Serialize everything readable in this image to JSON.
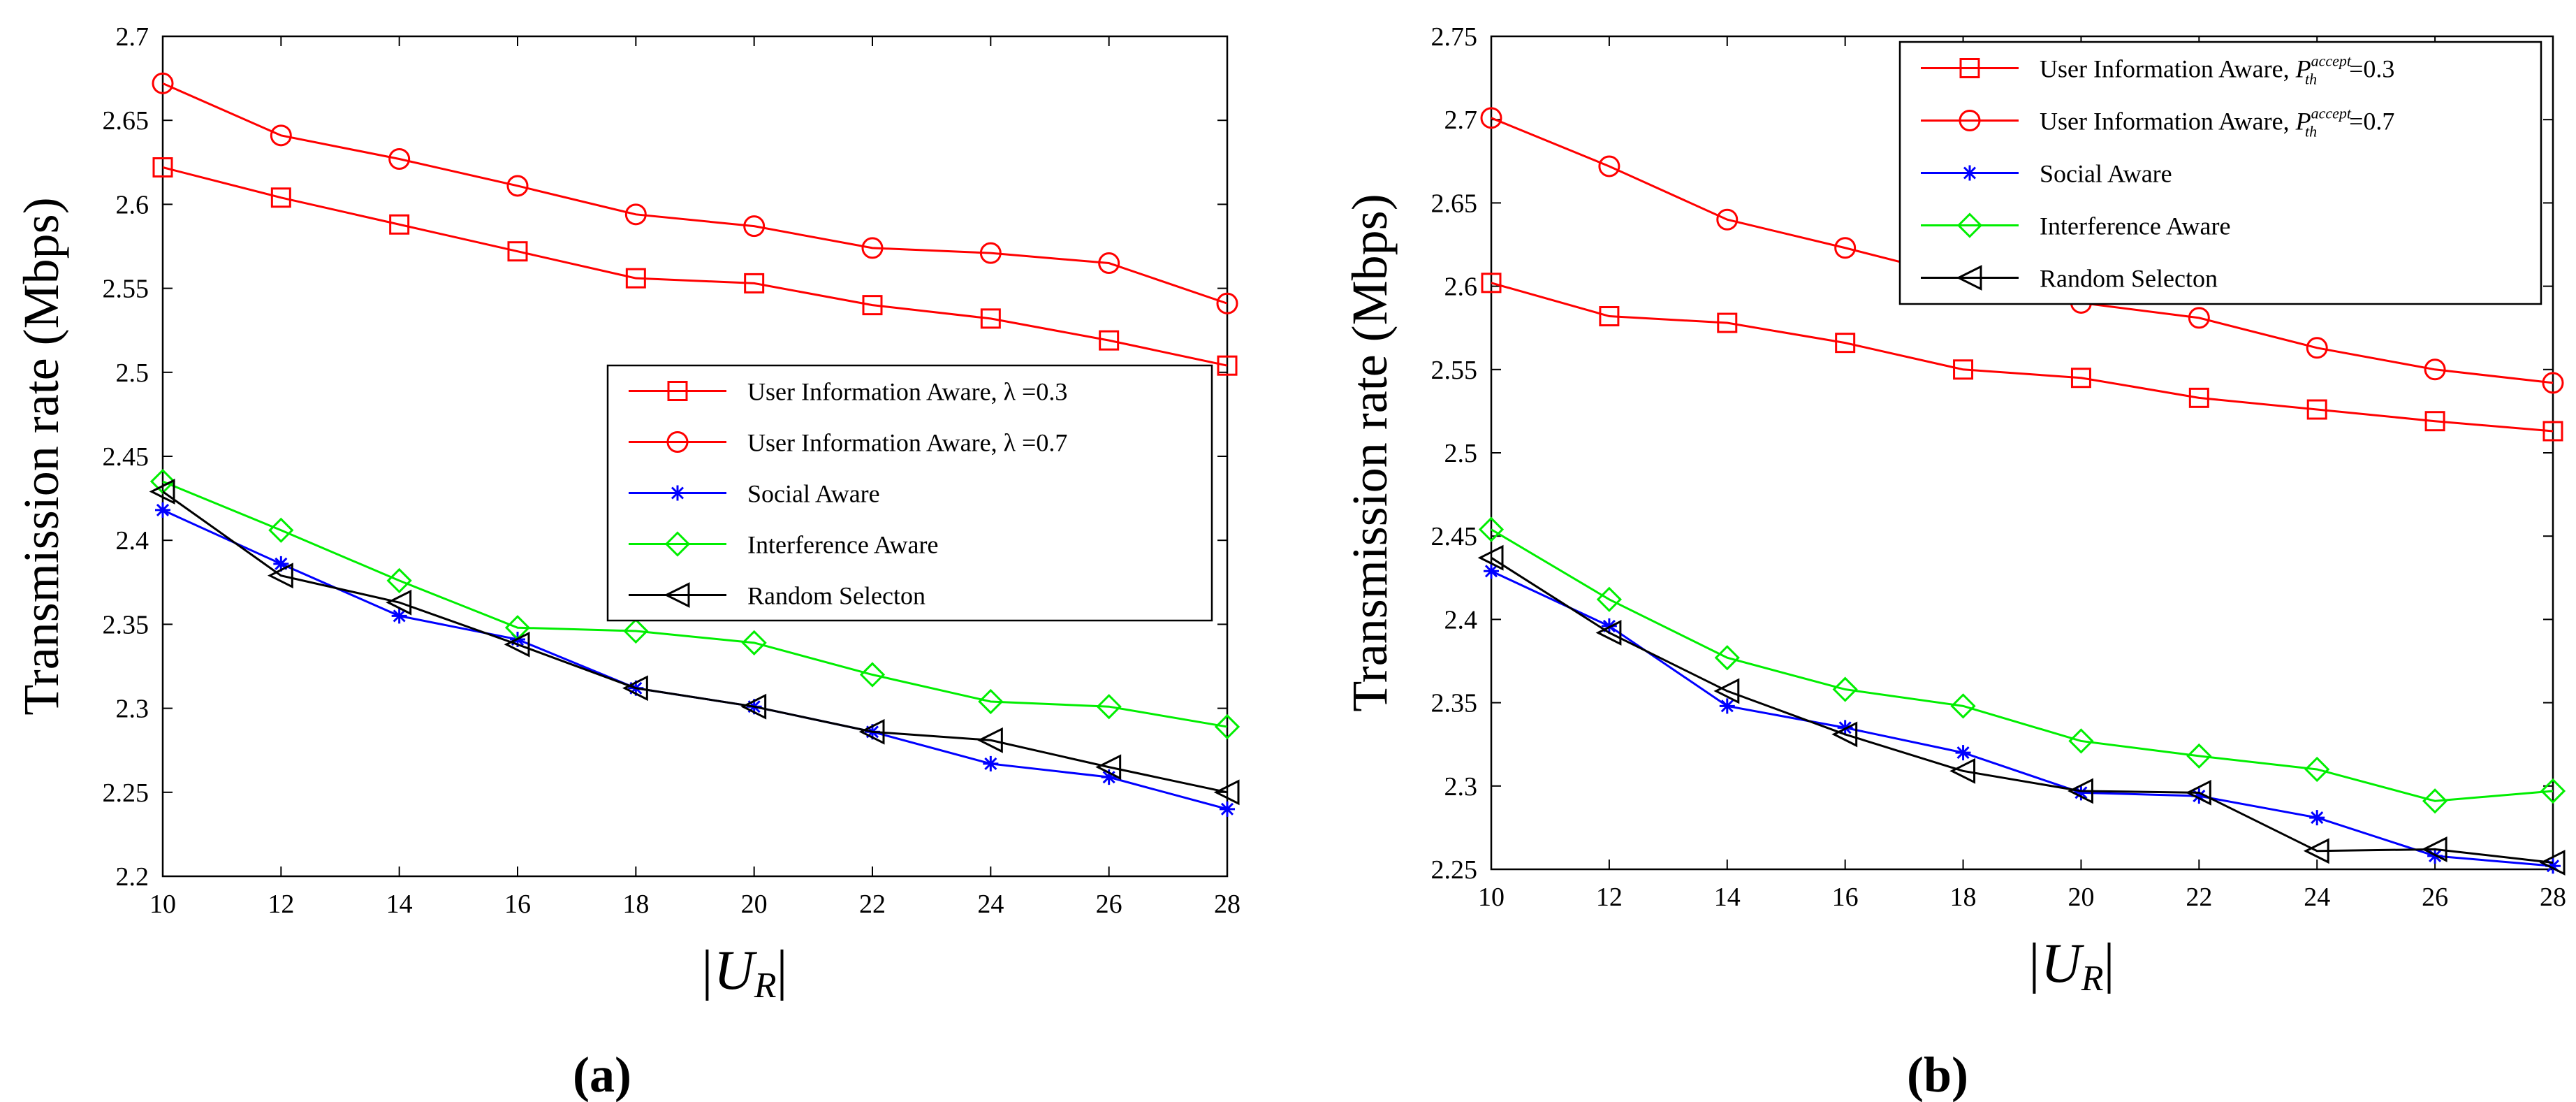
{
  "chart_data": [
    {
      "type": "line",
      "panel_label": "(a)",
      "xlabel": "|U",
      "xlabel_sub": "R",
      "xlabel_end": "|",
      "ylabel": "Transmission rate (Mbps)",
      "x": [
        10,
        12,
        14,
        16,
        18,
        20,
        22,
        24,
        26,
        28
      ],
      "xlim": [
        10,
        28
      ],
      "ylim": [
        2.2,
        2.7
      ],
      "xticks": [
        "10",
        "12",
        "14",
        "16",
        "18",
        "20",
        "22",
        "24",
        "26",
        "28"
      ],
      "yticks": [
        "2.2",
        "2.25",
        "2.3",
        "2.35",
        "2.4",
        "2.45",
        "2.5",
        "2.55",
        "2.6",
        "2.65",
        "2.7"
      ],
      "legend_position": "center-right",
      "series": [
        {
          "name": "User Information Aware,",
          "param": "λ =0.3",
          "color": "#ff0000",
          "marker": "square",
          "values": [
            2.622,
            2.604,
            2.588,
            2.572,
            2.556,
            2.553,
            2.54,
            2.532,
            2.519,
            2.504
          ]
        },
        {
          "name": "User Information Aware,",
          "param": "λ =0.7",
          "color": "#ff0000",
          "marker": "circle",
          "values": [
            2.672,
            2.641,
            2.627,
            2.611,
            2.594,
            2.587,
            2.574,
            2.571,
            2.565,
            2.541
          ]
        },
        {
          "name": "Social Aware",
          "param": "",
          "color": "#0000ff",
          "marker": "star",
          "values": [
            2.418,
            2.386,
            2.355,
            2.341,
            2.312,
            2.301,
            2.286,
            2.267,
            2.259,
            2.24
          ]
        },
        {
          "name": "Interference Aware",
          "param": "",
          "color": "#00ee00",
          "marker": "diamond",
          "values": [
            2.435,
            2.406,
            2.376,
            2.348,
            2.346,
            2.339,
            2.32,
            2.304,
            2.301,
            2.289
          ]
        },
        {
          "name": "Random Selecton",
          "param": "",
          "color": "#000000",
          "marker": "triangle-left",
          "values": [
            2.429,
            2.379,
            2.363,
            2.338,
            2.312,
            2.301,
            2.286,
            2.281,
            2.265,
            2.25
          ]
        }
      ]
    },
    {
      "type": "line",
      "panel_label": "(b)",
      "xlabel": "|U",
      "xlabel_sub": "R",
      "xlabel_end": "|",
      "ylabel": "Transmission rate (Mbps)",
      "x": [
        10,
        12,
        14,
        16,
        18,
        20,
        22,
        24,
        26,
        28
      ],
      "xlim": [
        10,
        28
      ],
      "ylim": [
        2.25,
        2.75
      ],
      "xticks": [
        "10",
        "12",
        "14",
        "16",
        "18",
        "20",
        "22",
        "24",
        "26",
        "28"
      ],
      "yticks": [
        "2.25",
        "2.3",
        "2.35",
        "2.4",
        "2.45",
        "2.5",
        "2.55",
        "2.6",
        "2.65",
        "2.7",
        "2.75"
      ],
      "legend_position": "top-right",
      "series": [
        {
          "name": "User Information Aware,",
          "param_symbol": "P",
          "param_sub": "th",
          "param_sup": "accept",
          "param_value": "=0.3",
          "color": "#ff0000",
          "marker": "square",
          "values": [
            2.602,
            2.582,
            2.578,
            2.566,
            2.55,
            2.545,
            2.533,
            2.526,
            2.519,
            2.513
          ]
        },
        {
          "name": "User Information Aware,",
          "param_symbol": "P",
          "param_sub": "th",
          "param_sup": "accept",
          "param_value": "=0.7",
          "color": "#ff0000",
          "marker": "circle",
          "values": [
            2.701,
            2.672,
            2.64,
            2.623,
            2.605,
            2.59,
            2.581,
            2.563,
            2.55,
            2.542
          ]
        },
        {
          "name": "Social Aware",
          "color": "#0000ff",
          "marker": "star",
          "values": [
            2.429,
            2.396,
            2.348,
            2.335,
            2.32,
            2.296,
            2.294,
            2.281,
            2.258,
            2.252
          ]
        },
        {
          "name": "Interference Aware",
          "color": "#00ee00",
          "marker": "diamond",
          "values": [
            2.454,
            2.412,
            2.377,
            2.358,
            2.348,
            2.327,
            2.318,
            2.31,
            2.291,
            2.297
          ]
        },
        {
          "name": "Random Selecton",
          "color": "#000000",
          "marker": "triangle-left",
          "values": [
            2.437,
            2.392,
            2.357,
            2.331,
            2.309,
            2.297,
            2.296,
            2.261,
            2.262,
            2.254
          ]
        }
      ]
    }
  ]
}
